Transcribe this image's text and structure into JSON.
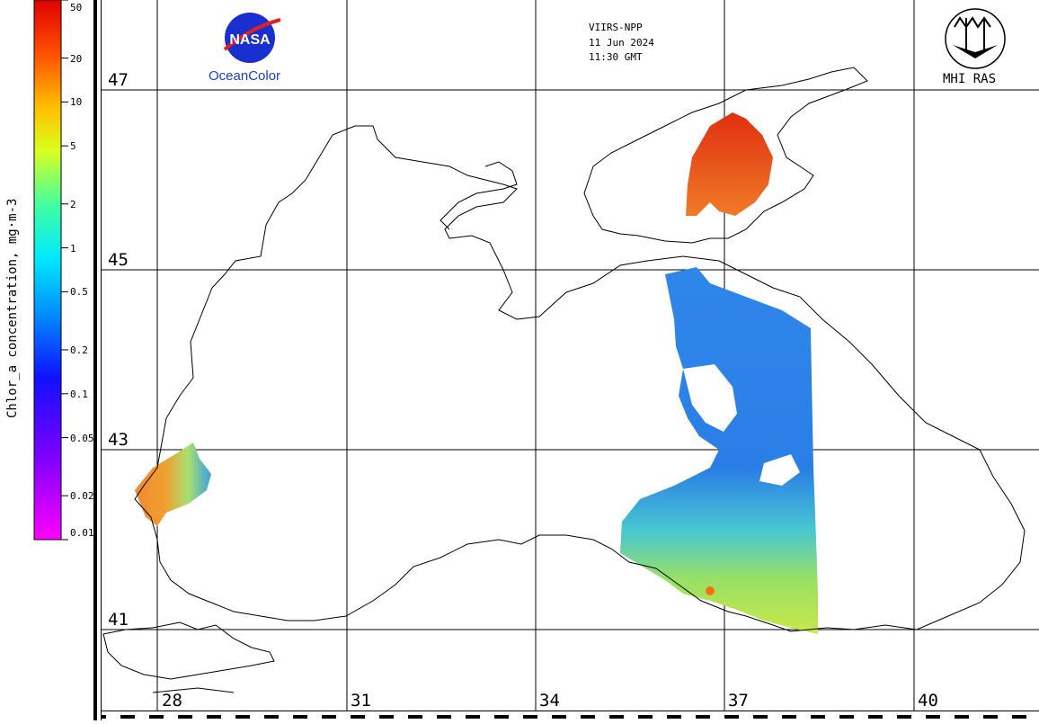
{
  "header": {
    "sensor": "VIIRS-NPP",
    "date": "11 Jun 2024",
    "time": "11:30 GMT"
  },
  "logos": {
    "nasa_wordmark": "NASA",
    "nasa_caption": "OceanColor",
    "mhi_caption": "MHI RAS"
  },
  "colorbar": {
    "title": "Chlor_a concentration, mg·m-3",
    "ticks": [
      "50",
      "20",
      "10",
      "5",
      "2",
      "1",
      "0.5",
      "0.2",
      "0.1",
      "0.05",
      "0.02",
      "0.01"
    ],
    "tick_values": [
      50,
      20,
      10,
      5,
      2,
      1,
      0.5,
      0.2,
      0.1,
      0.05,
      0.02,
      0.01
    ],
    "scale": "log",
    "range": [
      0.01,
      50
    ],
    "colors_low_to_high": [
      "#ff00ff",
      "#8000ff",
      "#0000ff",
      "#0080ff",
      "#00ffff",
      "#00ff80",
      "#ffff00",
      "#ff8000",
      "#ff0000"
    ]
  },
  "grid": {
    "latitudes": [
      "47",
      "45",
      "43",
      "41"
    ],
    "longitudes": [
      "28",
      "31",
      "34",
      "37",
      "40"
    ]
  },
  "map_colors": {
    "coast": "#000000",
    "azov_high": "#e8501a",
    "bulgaria_mid": "#f5a33a",
    "open_sea_low": "#2f7fe8",
    "turkey_coast_mid": "#9be05a"
  }
}
